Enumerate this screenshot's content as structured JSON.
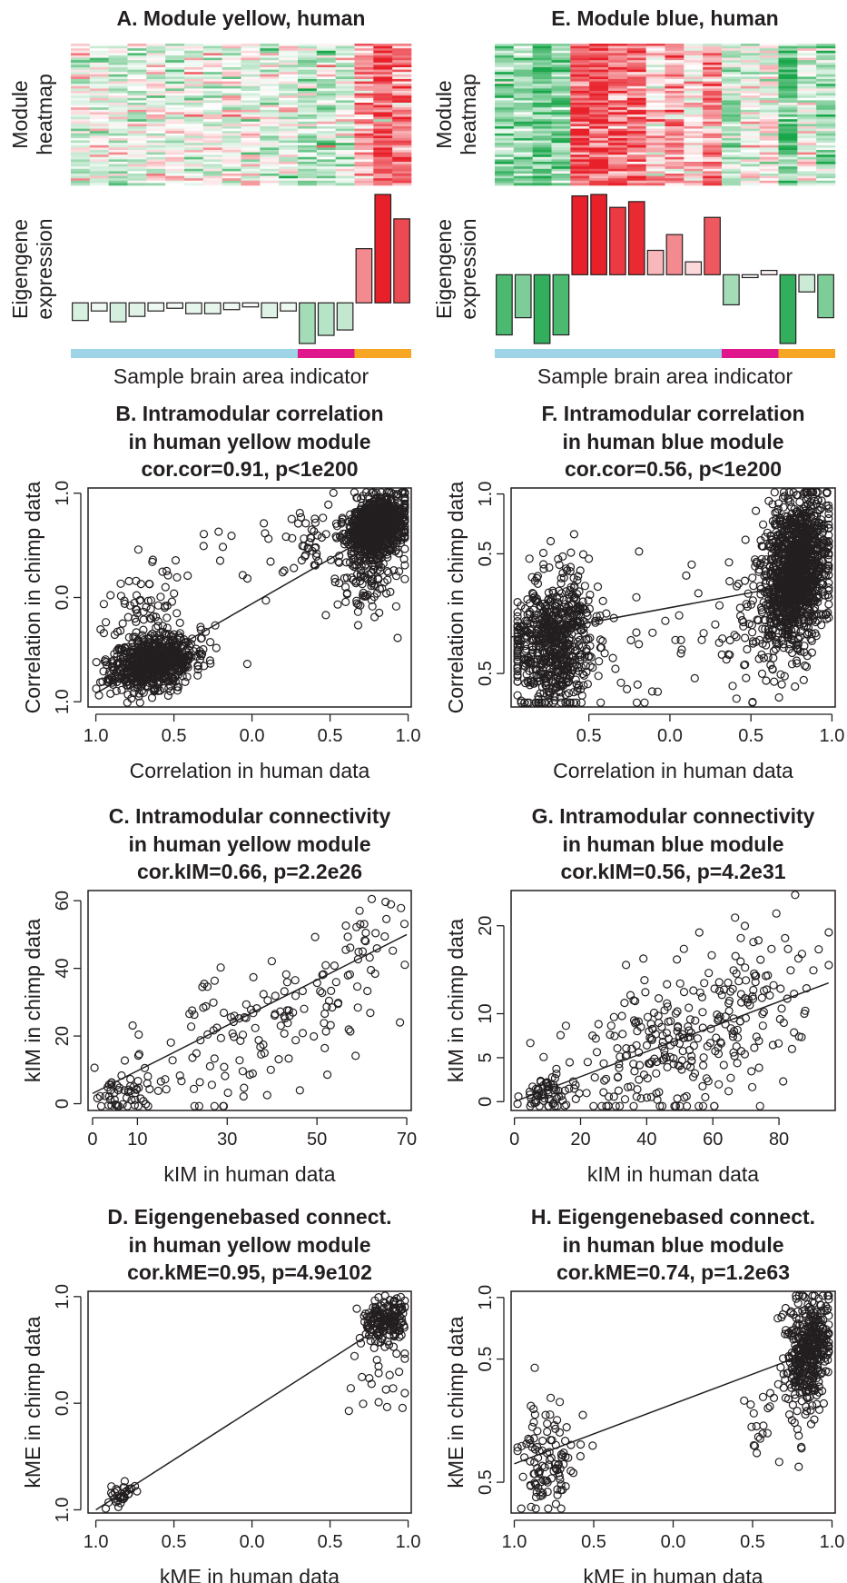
{
  "colors": {
    "blue_area": "#9fd3e6",
    "magenta_area": "#e0178c",
    "orange_area": "#f6a623",
    "heat_low": "#1aa64a",
    "heat_mid": "#ffffff",
    "heat_high": "#e8202a"
  },
  "chart_data": [
    {
      "id": "A",
      "type": "heatmap",
      "title": "A. Module yellow, human",
      "heatmap_ylabel": [
        "Module",
        "heatmap"
      ],
      "heatmap_pattern": "mostly light pink/green in first 17 samples, dark green cluster then red cluster in last 3 samples",
      "eigengene_ylabel": [
        "Eigengene",
        "expression"
      ],
      "eigengene_values": [
        -0.13,
        -0.06,
        -0.14,
        -0.1,
        -0.06,
        -0.04,
        -0.08,
        -0.08,
        -0.05,
        -0.03,
        -0.11,
        -0.06,
        -0.3,
        -0.24,
        -0.2,
        0.4,
        0.8,
        0.62
      ],
      "area_indicator": [
        {
          "area": "blue",
          "samples": 12
        },
        {
          "area": "magenta",
          "samples": 3
        },
        {
          "area": "orange",
          "samples": 3
        }
      ],
      "xlabel": "Sample brain area indicator"
    },
    {
      "id": "E",
      "type": "heatmap",
      "title": "E. Module blue, human",
      "heatmap_ylabel": [
        "Module",
        "heatmap"
      ],
      "heatmap_pattern": "green in first samples, red in middle samples, mixed in last samples",
      "eigengene_ylabel": [
        "Eigengene",
        "expression"
      ],
      "eigengene_values": [
        -0.42,
        -0.3,
        -0.48,
        -0.42,
        0.55,
        0.56,
        0.47,
        0.51,
        0.17,
        0.28,
        0.09,
        0.4,
        -0.21,
        -0.02,
        0.03,
        -0.48,
        -0.12,
        -0.3
      ],
      "area_indicator": [
        {
          "area": "blue",
          "samples": 12
        },
        {
          "area": "magenta",
          "samples": 3
        },
        {
          "area": "orange",
          "samples": 3
        }
      ],
      "xlabel": "Sample brain area indicator"
    },
    {
      "id": "B",
      "type": "scatter",
      "title": [
        "B. Intramodular correlation",
        "in human yellow module",
        "cor.cor=0.91, p<1e200"
      ],
      "xlabel": "Correlation in human data",
      "ylabel": "Correlation in chimp data",
      "xlim": [
        -1.05,
        1.02
      ],
      "ylim": [
        -1.05,
        1.05
      ],
      "xticks": [
        -1,
        -0.5,
        0,
        0.5,
        1
      ],
      "xtick_labels": [
        "1.0",
        "0.5",
        "0.0",
        "0.5",
        "1.0"
      ],
      "yticks": [
        -1,
        0,
        1
      ],
      "ytick_labels": [
        "1.0",
        "0.0",
        "1.0"
      ],
      "fit_line": [
        [
          -1.0,
          -0.92
        ],
        [
          1.0,
          0.8
        ]
      ],
      "clusters": [
        {
          "cx": -0.63,
          "cy": -0.62,
          "sx": 0.13,
          "sy": 0.13,
          "n": 700,
          "rho": 0.3
        },
        {
          "cx": -0.72,
          "cy": -0.25,
          "sx": 0.12,
          "sy": 0.25,
          "n": 90,
          "rho": 0.2
        },
        {
          "cx": 0.8,
          "cy": 0.68,
          "sx": 0.09,
          "sy": 0.14,
          "n": 900,
          "rho": 0.3
        },
        {
          "cx": 0.75,
          "cy": 0.25,
          "sx": 0.12,
          "sy": 0.25,
          "n": 140,
          "rho": 0.2
        },
        {
          "cx": -0.2,
          "cy": 0.15,
          "sx": 0.3,
          "sy": 0.4,
          "n": 28,
          "rho": 0.5
        },
        {
          "cx": 0.35,
          "cy": 0.55,
          "sx": 0.1,
          "sy": 0.18,
          "n": 40,
          "rho": 0.3
        }
      ],
      "seed": 11
    },
    {
      "id": "F",
      "type": "scatter",
      "title": [
        "F. Intramodular correlation",
        "in human blue module",
        "cor.cor=0.56, p<1e200"
      ],
      "xlabel": "Correlation in human data",
      "ylabel": "Correlation in chimp data",
      "xlim": [
        -0.98,
        1.02
      ],
      "ylim": [
        -0.78,
        1.05
      ],
      "xticks": [
        -0.5,
        0,
        0.5,
        1
      ],
      "xtick_labels": [
        "0.5",
        "0.0",
        "0.5",
        "1.0"
      ],
      "yticks": [
        -0.5,
        0.5,
        1
      ],
      "ytick_labels": [
        "0.5",
        "0.5",
        "1.0"
      ],
      "fit_line": [
        [
          -1.0,
          -0.2
        ],
        [
          1.0,
          0.3
        ]
      ],
      "clusters": [
        {
          "cx": -0.73,
          "cy": -0.25,
          "sx": 0.13,
          "sy": 0.28,
          "n": 650,
          "rho": 0.1
        },
        {
          "cx": 0.78,
          "cy": 0.35,
          "sx": 0.1,
          "sy": 0.3,
          "n": 1200,
          "rho": 0.2
        },
        {
          "cx": -0.1,
          "cy": -0.2,
          "sx": 0.3,
          "sy": 0.3,
          "n": 40,
          "rho": 0.3
        },
        {
          "cx": 0.55,
          "cy": -0.1,
          "sx": 0.12,
          "sy": 0.3,
          "n": 80,
          "rho": 0.2
        }
      ],
      "seed": 23
    },
    {
      "id": "C",
      "type": "scatter",
      "title": [
        "C. Intramodular connectivity",
        "in human yellow module",
        "cor.kIM=0.66, p=2.2e26"
      ],
      "xlabel": "kIM in human data",
      "ylabel": "kIM in chimp data",
      "xlim": [
        -1,
        71
      ],
      "ylim": [
        -2,
        63
      ],
      "xticks": [
        0,
        10,
        30,
        50,
        70
      ],
      "xtick_labels": [
        "0",
        "10",
        "30",
        "50",
        "70"
      ],
      "yticks": [
        0,
        20,
        40,
        60
      ],
      "ytick_labels": [
        "0",
        "20",
        "40",
        "60"
      ],
      "fit_line": [
        [
          0,
          3
        ],
        [
          70,
          50
        ]
      ],
      "clusters": [
        {
          "cx": 7,
          "cy": 3,
          "sx": 2.5,
          "sy": 2.5,
          "n": 45,
          "rho": 0.4
        },
        {
          "cx": 35,
          "cy": 22,
          "sx": 15,
          "sy": 14,
          "n": 150,
          "rho": 0.55
        },
        {
          "cx": 62,
          "cy": 52,
          "sx": 4,
          "sy": 5,
          "n": 20,
          "rho": 0.3
        }
      ],
      "seed": 37
    },
    {
      "id": "G",
      "type": "scatter",
      "title": [
        "G. Intramodular connectivity",
        "in human blue module",
        "cor.kIM=0.56, p=4.2e31"
      ],
      "xlabel": "kIM in human data",
      "ylabel": "kIM in chimp data",
      "xlim": [
        -1,
        97
      ],
      "ylim": [
        -1,
        24
      ],
      "xticks": [
        0,
        20,
        40,
        60,
        80
      ],
      "xtick_labels": [
        "0",
        "20",
        "40",
        "60",
        "80"
      ],
      "yticks": [
        0,
        5,
        10,
        20
      ],
      "ytick_labels": [
        "0",
        "5",
        "10",
        "20"
      ],
      "fit_line": [
        [
          0,
          0
        ],
        [
          95,
          13.5
        ]
      ],
      "clusters": [
        {
          "cx": 10,
          "cy": 1,
          "sx": 4,
          "sy": 1.2,
          "n": 60,
          "rho": 0.2
        },
        {
          "cx": 50,
          "cy": 6,
          "sx": 18,
          "sy": 5,
          "n": 260,
          "rho": 0.4
        },
        {
          "cx": 78,
          "cy": 14,
          "sx": 10,
          "sy": 5,
          "n": 50,
          "rho": 0.3
        }
      ],
      "seed": 53
    },
    {
      "id": "D",
      "type": "scatter",
      "title": [
        "D. Eigengenebased connect.",
        "in human yellow module",
        "cor.kME=0.95, p=4.9e102"
      ],
      "xlabel": "kME in human data",
      "ylabel": "kME in chimp data",
      "xlim": [
        -1.05,
        1.02
      ],
      "ylim": [
        -1.03,
        1.05
      ],
      "xticks": [
        -1,
        -0.5,
        0,
        0.5,
        1
      ],
      "xtick_labels": [
        "1.0",
        "0.5",
        "0.0",
        "0.5",
        "1.0"
      ],
      "yticks": [
        -1,
        0,
        1
      ],
      "ytick_labels": [
        "1.0",
        "0.0",
        "1.0"
      ],
      "fit_line": [
        [
          -1.0,
          -1.0
        ],
        [
          1.0,
          0.88
        ]
      ],
      "clusters": [
        {
          "cx": -0.83,
          "cy": -0.86,
          "sx": 0.05,
          "sy": 0.06,
          "n": 35,
          "rho": 0.5
        },
        {
          "cx": 0.85,
          "cy": 0.78,
          "sx": 0.08,
          "sy": 0.12,
          "n": 170,
          "rho": 0.3
        },
        {
          "cx": 0.85,
          "cy": 0.25,
          "sx": 0.12,
          "sy": 0.25,
          "n": 25,
          "rho": 0.2
        }
      ],
      "seed": 71
    },
    {
      "id": "H",
      "type": "scatter",
      "title": [
        "H. Eigengenebased connect.",
        "in human blue module",
        "cor.kME=0.74, p=1.2e63"
      ],
      "xlabel": "kME in human data",
      "ylabel": "kME in chimp data",
      "xlim": [
        -1.02,
        1.02
      ],
      "ylim": [
        -0.75,
        1.05
      ],
      "xticks": [
        -1,
        -0.5,
        0,
        0.5,
        1
      ],
      "xtick_labels": [
        "1.0",
        "0.5",
        "0.0",
        "0.5",
        "1.0"
      ],
      "yticks": [
        -0.5,
        0.5,
        1
      ],
      "ytick_labels": [
        "0.5",
        "0.5",
        "1.0"
      ],
      "fit_line": [
        [
          -1.0,
          -0.35
        ],
        [
          1.0,
          0.62
        ]
      ],
      "clusters": [
        {
          "cx": -0.78,
          "cy": -0.3,
          "sx": 0.1,
          "sy": 0.25,
          "n": 110,
          "rho": 0.1
        },
        {
          "cx": 0.85,
          "cy": 0.55,
          "sx": 0.07,
          "sy": 0.25,
          "n": 400,
          "rho": 0.2
        },
        {
          "cx": 0.6,
          "cy": 0.05,
          "sx": 0.08,
          "sy": 0.2,
          "n": 20,
          "rho": 0.2
        }
      ],
      "seed": 89
    }
  ]
}
